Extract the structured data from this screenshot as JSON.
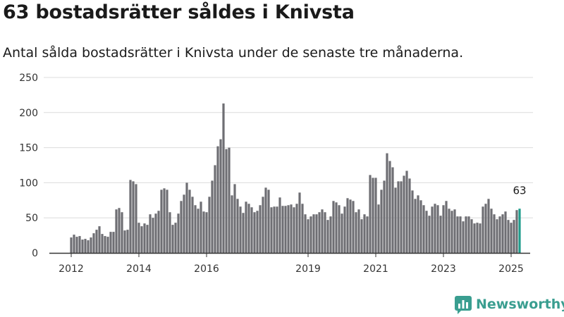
{
  "title": "63 bostadsrätter såldes i Knivsta",
  "subtitle": "Antal sålda bostadsrätter i Knivsta under de senaste tre månaderna.",
  "brand": {
    "name": "Newsworthy",
    "color": "#3a9e90",
    "logo_icon": "bar-chart-speech-bubble-icon"
  },
  "colors": {
    "bar": "#6e6e73",
    "highlight": "#1f9c8c",
    "grid": "#dcdcdc",
    "baseline": "#333333"
  },
  "chart_data": {
    "type": "bar",
    "title": "63 bostadsrätter såldes i Knivsta",
    "subtitle": "Antal sålda bostadsrätter i Knivsta under de senaste tre månaderna.",
    "x_start": "2012-01",
    "x_interval": "month",
    "ylim": [
      0,
      250
    ],
    "yticks": [
      0,
      50,
      100,
      150,
      200,
      250
    ],
    "xticks": [
      {
        "label": "2012",
        "index": 0
      },
      {
        "label": "2014",
        "index": 24
      },
      {
        "label": "2016",
        "index": 48
      },
      {
        "label": "2019",
        "index": 84
      },
      {
        "label": "2021",
        "index": 108
      },
      {
        "label": "2023",
        "index": 132
      },
      {
        "label": "2025",
        "index": 156
      }
    ],
    "grid": true,
    "highlight_last": true,
    "last_value_label": "63",
    "values": [
      22,
      26,
      23,
      24,
      19,
      20,
      18,
      22,
      28,
      33,
      38,
      27,
      24,
      23,
      30,
      30,
      62,
      64,
      58,
      32,
      33,
      104,
      102,
      98,
      43,
      38,
      42,
      40,
      55,
      50,
      56,
      60,
      90,
      92,
      90,
      58,
      40,
      43,
      56,
      74,
      83,
      100,
      90,
      80,
      68,
      63,
      73,
      59,
      58,
      80,
      103,
      125,
      152,
      162,
      213,
      148,
      150,
      82,
      98,
      77,
      66,
      57,
      73,
      70,
      65,
      58,
      60,
      68,
      80,
      93,
      90,
      65,
      66,
      66,
      79,
      67,
      67,
      68,
      69,
      65,
      70,
      86,
      70,
      55,
      48,
      52,
      55,
      55,
      58,
      62,
      58,
      47,
      52,
      74,
      72,
      68,
      56,
      66,
      78,
      76,
      74,
      58,
      62,
      48,
      55,
      52,
      111,
      107,
      107,
      69,
      90,
      103,
      142,
      131,
      122,
      93,
      102,
      102,
      110,
      117,
      106,
      89,
      77,
      82,
      75,
      68,
      60,
      53,
      66,
      70,
      68,
      53,
      68,
      74,
      63,
      60,
      62,
      52,
      52,
      45,
      52,
      52,
      48,
      42,
      43,
      42,
      66,
      70,
      77,
      63,
      55,
      48,
      52,
      55,
      59,
      47,
      43,
      47,
      61,
      63
    ]
  }
}
